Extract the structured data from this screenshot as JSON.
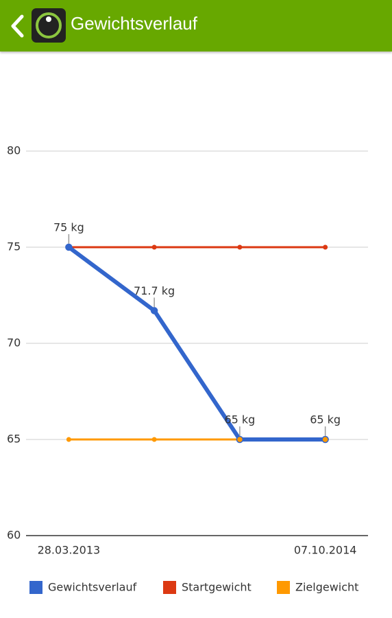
{
  "header": {
    "title": "Gewichtsverlauf"
  },
  "chart_data": {
    "type": "line",
    "categories": [
      "28.03.2013",
      null,
      null,
      "07.10.2014"
    ],
    "series": [
      {
        "name": "Gewichtsverlauf",
        "color": "#3366cc",
        "values": [
          75,
          71.7,
          65,
          65
        ],
        "value_labels": [
          "75 kg",
          "71.7 kg",
          "65 kg",
          "65 kg"
        ]
      },
      {
        "name": "Startgewicht",
        "color": "#dc3912",
        "values": [
          75,
          75,
          75,
          75
        ]
      },
      {
        "name": "Zielgewicht",
        "color": "#ff9900",
        "values": [
          65,
          65,
          65,
          65
        ]
      }
    ],
    "ylim": [
      60,
      80
    ],
    "yticks": [
      60,
      65,
      70,
      75,
      80
    ],
    "grid": true,
    "legend": "bottom"
  }
}
